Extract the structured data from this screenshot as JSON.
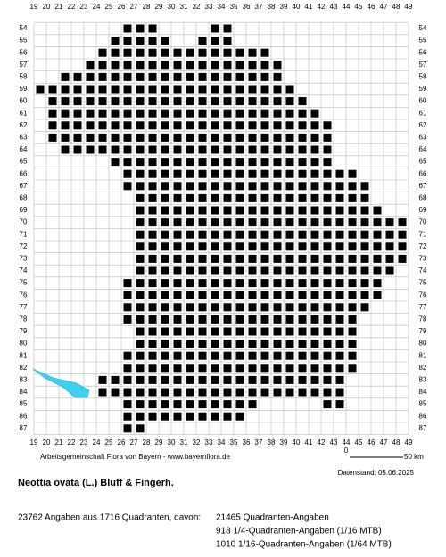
{
  "map": {
    "columns": [
      19,
      20,
      21,
      22,
      23,
      24,
      25,
      26,
      27,
      28,
      29,
      30,
      31,
      32,
      33,
      34,
      35,
      36,
      37,
      38,
      39,
      40,
      41,
      42,
      43,
      44,
      45,
      46,
      47,
      48,
      49
    ],
    "rows": [
      54,
      55,
      56,
      57,
      58,
      59,
      60,
      61,
      62,
      63,
      64,
      65,
      66,
      67,
      68,
      69,
      70,
      71,
      72,
      73,
      74,
      75,
      76,
      77,
      78,
      79,
      80,
      81,
      82,
      83,
      84,
      85,
      86,
      87
    ],
    "cells": [
      {
        "row": 54,
        "spans": [
          [
            26,
            28
          ],
          [
            33,
            34
          ]
        ]
      },
      {
        "row": 55,
        "spans": [
          [
            25,
            29
          ],
          [
            32,
            34
          ]
        ]
      },
      {
        "row": 56,
        "spans": [
          [
            24,
            37
          ]
        ]
      },
      {
        "row": 57,
        "spans": [
          [
            23,
            38
          ]
        ]
      },
      {
        "row": 58,
        "spans": [
          [
            21,
            38
          ]
        ]
      },
      {
        "row": 59,
        "spans": [
          [
            19,
            39
          ]
        ]
      },
      {
        "row": 60,
        "spans": [
          [
            20,
            40
          ]
        ]
      },
      {
        "row": 61,
        "spans": [
          [
            20,
            41
          ]
        ]
      },
      {
        "row": 62,
        "spans": [
          [
            20,
            42
          ]
        ]
      },
      {
        "row": 63,
        "spans": [
          [
            20,
            42
          ]
        ]
      },
      {
        "row": 64,
        "spans": [
          [
            21,
            42
          ]
        ]
      },
      {
        "row": 65,
        "spans": [
          [
            25,
            42
          ]
        ]
      },
      {
        "row": 66,
        "spans": [
          [
            26,
            44
          ]
        ]
      },
      {
        "row": 67,
        "spans": [
          [
            26,
            45
          ]
        ]
      },
      {
        "row": 68,
        "spans": [
          [
            27,
            45
          ]
        ]
      },
      {
        "row": 69,
        "spans": [
          [
            27,
            46
          ]
        ]
      },
      {
        "row": 70,
        "spans": [
          [
            27,
            48
          ]
        ]
      },
      {
        "row": 71,
        "spans": [
          [
            27,
            48
          ]
        ]
      },
      {
        "row": 72,
        "spans": [
          [
            27,
            48
          ]
        ]
      },
      {
        "row": 73,
        "spans": [
          [
            27,
            48
          ]
        ]
      },
      {
        "row": 74,
        "spans": [
          [
            27,
            47
          ]
        ]
      },
      {
        "row": 75,
        "spans": [
          [
            26,
            46
          ]
        ]
      },
      {
        "row": 76,
        "spans": [
          [
            26,
            46
          ]
        ]
      },
      {
        "row": 77,
        "spans": [
          [
            26,
            45
          ]
        ]
      },
      {
        "row": 78,
        "spans": [
          [
            26,
            44
          ]
        ]
      },
      {
        "row": 79,
        "spans": [
          [
            27,
            44
          ]
        ]
      },
      {
        "row": 80,
        "spans": [
          [
            27,
            44
          ]
        ]
      },
      {
        "row": 81,
        "spans": [
          [
            26,
            44
          ]
        ]
      },
      {
        "row": 82,
        "spans": [
          [
            26,
            44
          ]
        ]
      },
      {
        "row": 83,
        "spans": [
          [
            24,
            43
          ]
        ]
      },
      {
        "row": 84,
        "spans": [
          [
            24,
            43
          ]
        ]
      },
      {
        "row": 85,
        "spans": [
          [
            26,
            36
          ],
          [
            42,
            43
          ]
        ]
      },
      {
        "row": 86,
        "spans": [
          [
            26,
            35
          ]
        ]
      },
      {
        "row": 87,
        "spans": [
          [
            26,
            27
          ]
        ]
      }
    ]
  },
  "scale": {
    "start": "0",
    "end": "50 km"
  },
  "credit": "Arbeitsgemeinschaft Flora von Bayern - www.bayernflora.de",
  "date": "Datenstand: 05.06.2025",
  "title": "Neottia ovata (L.) Bluff & Fingerh.",
  "stats": {
    "summary": "23762 Angaben aus 1716 Quadranten, davon:",
    "lines": [
      "21465 Quadranten-Angaben",
      "918 1/4-Quadranten-Angaben (1/16 MTB)",
      "1010 1/16-Quadranten-Angaben (1/64 MTB)"
    ]
  }
}
